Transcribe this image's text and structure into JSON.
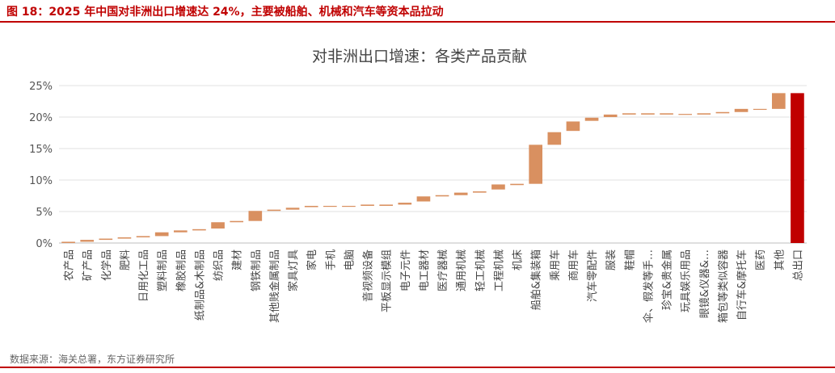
{
  "figure_title": "图 18：2025 年中国对非洲出口增速达 24%，主要被船舶、机械和汽车等资本品拉动",
  "source": "数据来源：海关总署，东方证券研究所",
  "colors": {
    "accent": "#c00000",
    "bar": "#d99060",
    "total": "#c00000",
    "grid": "#e0e0e0"
  },
  "chart_data": {
    "type": "bar",
    "subtype": "waterfall",
    "title": "对非洲出口增速：各类产品贡献",
    "xlabel": "",
    "ylabel": "",
    "ylim": [
      0,
      25
    ],
    "yticks": [
      "0%",
      "5%",
      "10%",
      "15%",
      "20%",
      "25%"
    ],
    "grid": "horizontal",
    "legend": "none",
    "categories": [
      "农产品",
      "矿产品",
      "化学品",
      "肥料",
      "日用化工品",
      "塑料制品",
      "橡胶制品",
      "纸制品&木制品",
      "纺织品",
      "建材",
      "钢铁制品",
      "其他贱金属制品",
      "家具灯具",
      "家电",
      "手机",
      "电脑",
      "音视频设备",
      "平板显示模组",
      "电子元件",
      "电工器材",
      "医疗器械",
      "通用机械",
      "轻工机械",
      "工程机械",
      "机床",
      "船舶&集装箱",
      "乘用车",
      "商用车",
      "汽车零配件",
      "服装",
      "鞋帽",
      "伞、假发等手…",
      "珍宝&贵金属",
      "玩具娱乐用品",
      "眼镜&仪器&…",
      "箱包等类似容器",
      "自行车&摩托车",
      "医药",
      "其他",
      "总出口"
    ],
    "segments": [
      [
        0.0,
        0.2
      ],
      [
        0.2,
        0.5
      ],
      [
        0.5,
        0.7
      ],
      [
        0.7,
        0.9
      ],
      [
        0.9,
        1.1
      ],
      [
        1.1,
        1.7
      ],
      [
        1.7,
        2.0
      ],
      [
        2.0,
        2.2
      ],
      [
        2.3,
        3.3
      ],
      [
        3.3,
        3.5
      ],
      [
        3.5,
        5.1
      ],
      [
        5.1,
        5.3
      ],
      [
        5.3,
        5.6
      ],
      [
        5.7,
        5.9
      ],
      [
        5.8,
        5.9
      ],
      [
        5.8,
        5.9
      ],
      [
        5.9,
        6.1
      ],
      [
        5.9,
        6.1
      ],
      [
        6.1,
        6.4
      ],
      [
        6.6,
        7.4
      ],
      [
        7.4,
        7.6
      ],
      [
        7.6,
        8.0
      ],
      [
        8.0,
        8.2
      ],
      [
        8.5,
        9.3
      ],
      [
        9.2,
        9.4
      ],
      [
        9.4,
        15.6
      ],
      [
        15.6,
        17.6
      ],
      [
        17.8,
        19.3
      ],
      [
        19.4,
        19.9
      ],
      [
        20.0,
        20.4
      ],
      [
        20.4,
        20.6
      ],
      [
        20.4,
        20.6
      ],
      [
        20.4,
        20.6
      ],
      [
        20.4,
        20.5
      ],
      [
        20.4,
        20.6
      ],
      [
        20.6,
        20.8
      ],
      [
        20.8,
        21.3
      ],
      [
        21.2,
        21.3
      ],
      [
        21.3,
        23.8
      ],
      [
        0.0,
        23.8
      ]
    ]
  }
}
